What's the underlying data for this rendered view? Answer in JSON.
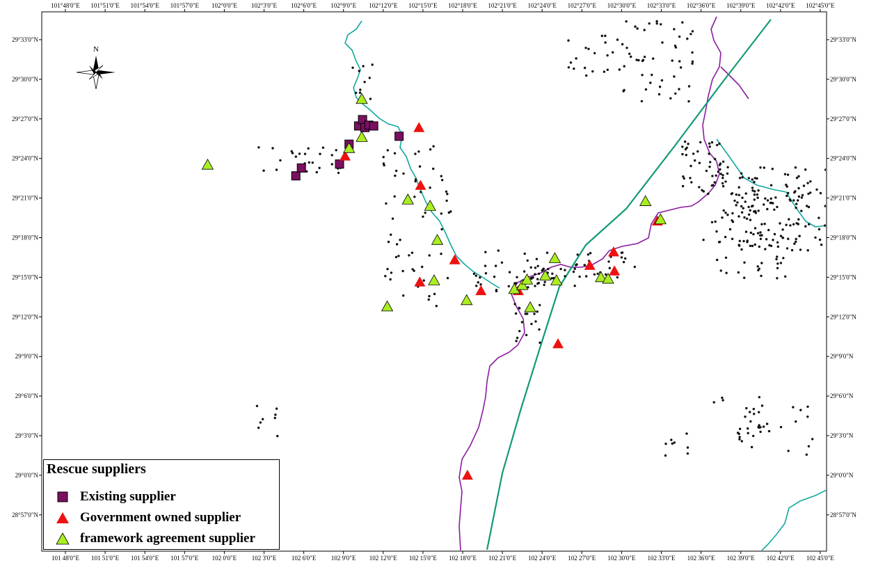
{
  "map": {
    "x_ticks": [
      "101°48'0\"E",
      "101°51'0\"E",
      "101°54'0\"E",
      "101°57'0\"E",
      "102°0'0\"E",
      "102°3'0\"E",
      "102°6'0\"E",
      "102°9'0\"E",
      "102°12'0\"E",
      "102°15'0\"E",
      "102°18'0\"E",
      "102°21'0\"E",
      "102°24'0\"E",
      "102°27'0\"E",
      "102°30'0\"E",
      "102°33'0\"E",
      "102°36'0\"E",
      "102°39'0\"E",
      "102°42'0\"E",
      "102°45'0\"E"
    ],
    "x_ticks_bottom": [
      "101 48'0\"E",
      "101 51'0\"E",
      "101 54'0\"E",
      "101 57'0\"E",
      "102 0'0\"E",
      "102 3'0\"E",
      "102 6'0\"E",
      "102 9'0\"E",
      "102 12'0\"E",
      "102 15'0\"E",
      "102 18'0\"E",
      "102 21'0\"E",
      "102 24'0\"E",
      "102 27'0\"E",
      "102 30'0\"E",
      "102 33'0\"E",
      "102 36'0\"E",
      "102 39'0\"E",
      "102 42'0\"E",
      "102 45'0\"E"
    ],
    "y_ticks": [
      "29°33'0\"N",
      "29°30'0\"N",
      "29°27'0\"N",
      "29°24'0\"N",
      "29°21'0\"N",
      "29°18'0\"N",
      "29°15'0\"N",
      "29°12'0\"N",
      "29°9'0\"N",
      "29°6'0\"N",
      "29°3'0\"N",
      "29°0'0\"N",
      "28°57'0\"N"
    ],
    "y_ticks_left": [
      "29°33'0\"N",
      "29°30'0\"N",
      "29°27'0\"N",
      "29°24'0\"N",
      "29°21'0\"N",
      "29°18'0\"N",
      "29°15'0\"N",
      "29°12'0\"N",
      "29°9'0\"N",
      "29°6'0\"N",
      "29°3'0\"N",
      "29°0'0\"N",
      "28°57'0\"N"
    ],
    "north_label": "N",
    "colors": {
      "existing": "#7a1060",
      "government": "#ee1111",
      "framework": "#aaee22",
      "river_teal": "#11a8a0",
      "river_purple": "#8a1aa0",
      "road": "#119977",
      "dot": "#111111"
    },
    "existing_suppliers": [
      {
        "lon": 102.09,
        "lat": 29.378
      },
      {
        "lon": 102.097,
        "lat": 29.388
      },
      {
        "lon": 102.145,
        "lat": 29.393
      },
      {
        "lon": 102.157,
        "lat": 29.418
      },
      {
        "lon": 102.169,
        "lat": 29.441
      },
      {
        "lon": 102.174,
        "lat": 29.449
      },
      {
        "lon": 102.177,
        "lat": 29.439
      },
      {
        "lon": 102.182,
        "lat": 29.442
      },
      {
        "lon": 102.188,
        "lat": 29.441
      },
      {
        "lon": 102.22,
        "lat": 29.428
      }
    ],
    "government_suppliers": [
      {
        "lon": 102.152,
        "lat": 29.403
      },
      {
        "lon": 102.245,
        "lat": 29.439
      },
      {
        "lon": 102.247,
        "lat": 29.366
      },
      {
        "lon": 102.29,
        "lat": 29.272
      },
      {
        "lon": 102.246,
        "lat": 29.244
      },
      {
        "lon": 102.323,
        "lat": 29.233
      },
      {
        "lon": 102.37,
        "lat": 29.233
      },
      {
        "lon": 102.42,
        "lat": 29.166
      },
      {
        "lon": 102.46,
        "lat": 29.265
      },
      {
        "lon": 102.49,
        "lat": 29.282
      },
      {
        "lon": 102.491,
        "lat": 29.258
      },
      {
        "lon": 102.545,
        "lat": 29.321
      },
      {
        "lon": 102.306,
        "lat": 29.0
      }
    ],
    "framework_suppliers": [
      {
        "lon": 101.979,
        "lat": 29.392
      },
      {
        "lon": 102.173,
        "lat": 29.475
      },
      {
        "lon": 102.173,
        "lat": 29.427
      },
      {
        "lon": 102.157,
        "lat": 29.413
      },
      {
        "lon": 102.231,
        "lat": 29.348
      },
      {
        "lon": 102.259,
        "lat": 29.34
      },
      {
        "lon": 102.268,
        "lat": 29.297
      },
      {
        "lon": 102.264,
        "lat": 29.246
      },
      {
        "lon": 102.205,
        "lat": 29.213
      },
      {
        "lon": 102.305,
        "lat": 29.221
      },
      {
        "lon": 102.365,
        "lat": 29.235
      },
      {
        "lon": 102.375,
        "lat": 29.24
      },
      {
        "lon": 102.381,
        "lat": 29.247
      },
      {
        "lon": 102.385,
        "lat": 29.212
      },
      {
        "lon": 102.404,
        "lat": 29.252
      },
      {
        "lon": 102.418,
        "lat": 29.246
      },
      {
        "lon": 102.416,
        "lat": 29.274
      },
      {
        "lon": 102.474,
        "lat": 29.25
      },
      {
        "lon": 102.483,
        "lat": 29.248
      },
      {
        "lon": 102.53,
        "lat": 29.346
      },
      {
        "lon": 102.549,
        "lat": 29.323
      }
    ]
  },
  "legend": {
    "title": "Rescue suppliers",
    "items": [
      {
        "label": "Existing supplier"
      },
      {
        "label": "Government owned supplier"
      },
      {
        "label": "framework agreement supplier"
      }
    ]
  }
}
